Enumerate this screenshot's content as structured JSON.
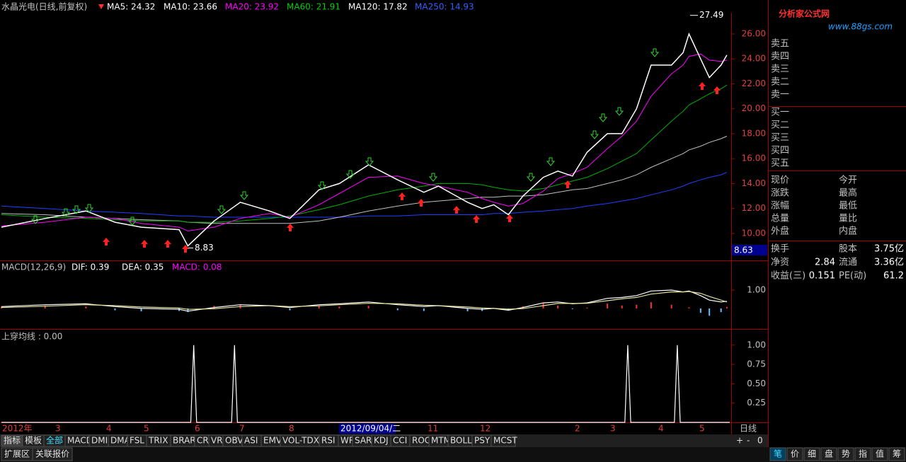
{
  "header": {
    "title": "水晶光电(日线,前复权)",
    "ma": [
      {
        "text": "MA5: 24.32",
        "color": "#ffffff"
      },
      {
        "text": "MA10: 23.66",
        "color": "#ffffff"
      },
      {
        "text": "MA20: 23.92",
        "color": "#ff00ff"
      },
      {
        "text": "MA60: 21.91",
        "color": "#00d000"
      },
      {
        "text": "MA120: 17.82",
        "color": "#ffffff"
      },
      {
        "text": "MA250: 14.93",
        "color": "#3060ff"
      }
    ]
  },
  "chart_data": [
    {
      "type": "line",
      "x": [
        0,
        15,
        29,
        39,
        48,
        61,
        64,
        73,
        82,
        92,
        99,
        109,
        116,
        126,
        136,
        145,
        150,
        160,
        165,
        169,
        174,
        179,
        186,
        191,
        196,
        201,
        208,
        213,
        218,
        223,
        230,
        234,
        236,
        240,
        243,
        247,
        249
      ],
      "xlim": [
        0,
        250
      ],
      "ylim": [
        7.84,
        27.7
      ],
      "yticks": [
        {
          "value": 10,
          "label": "10.00"
        },
        {
          "value": 12,
          "label": "12.00"
        },
        {
          "value": 14,
          "label": "14.00"
        },
        {
          "value": 16,
          "label": "16.00"
        },
        {
          "value": 18,
          "label": "18.00"
        },
        {
          "value": 20,
          "label": "20.00"
        },
        {
          "value": 22,
          "label": "22.00"
        },
        {
          "value": 24,
          "label": "24.00"
        },
        {
          "value": 26,
          "label": "26.00"
        }
      ],
      "series": [
        {
          "color": "#ffffff",
          "values": [
            10.5,
            11.2,
            11.8,
            10.9,
            10.5,
            10.3,
            9.0,
            11.0,
            12.5,
            11.8,
            11.2,
            13.5,
            14.0,
            15.5,
            14.3,
            13.3,
            13.8,
            12.5,
            12.0,
            12.3,
            11.5,
            13.0,
            14.5,
            15.0,
            14.6,
            16.5,
            18.0,
            18.0,
            20.0,
            23.5,
            23.5,
            24.5,
            26.0,
            24.0,
            22.5,
            23.5,
            24.3
          ]
        },
        {
          "name": "MA20",
          "color": "#ff00ff",
          "values": [
            10.6,
            10.9,
            11.3,
            11.2,
            10.8,
            10.5,
            10.2,
            10.5,
            11.2,
            11.6,
            11.3,
            12.3,
            13.2,
            14.5,
            14.6,
            14.0,
            13.8,
            13.3,
            12.8,
            12.5,
            12.2,
            12.4,
            13.4,
            14.4,
            14.8,
            15.3,
            16.8,
            17.8,
            19.0,
            21.0,
            22.8,
            23.5,
            24.2,
            24.4,
            23.9,
            23.8,
            23.9
          ]
        },
        {
          "name": "MA60",
          "color": "#00b000",
          "values": [
            11.5,
            11.3,
            11.2,
            11.1,
            11.0,
            11.0,
            10.9,
            10.9,
            11.0,
            11.2,
            11.4,
            11.9,
            12.3,
            13.0,
            13.5,
            13.8,
            14.0,
            14.0,
            13.9,
            13.7,
            13.5,
            13.4,
            13.6,
            13.9,
            14.2,
            14.5,
            15.2,
            15.8,
            16.4,
            17.5,
            19.0,
            19.8,
            20.3,
            20.8,
            21.2,
            21.6,
            21.9
          ]
        },
        {
          "name": "MA120",
          "color": "#c0c0c0",
          "values": [
            11.6,
            11.5,
            11.3,
            11.2,
            11.1,
            11.0,
            10.9,
            10.8,
            10.8,
            10.8,
            10.8,
            11.0,
            11.3,
            11.8,
            12.2,
            12.5,
            12.6,
            12.8,
            12.9,
            12.9,
            13.0,
            13.0,
            13.1,
            13.3,
            13.5,
            13.6,
            14.0,
            14.3,
            14.7,
            15.3,
            16.0,
            16.4,
            16.7,
            17.0,
            17.3,
            17.6,
            17.8
          ]
        },
        {
          "name": "MA250",
          "color": "#2040ff",
          "values": [
            12.2,
            12.0,
            11.8,
            11.7,
            11.6,
            11.4,
            11.4,
            11.3,
            11.3,
            11.3,
            11.3,
            11.3,
            11.3,
            11.4,
            11.4,
            11.5,
            11.5,
            11.5,
            11.5,
            11.6,
            11.6,
            11.7,
            11.8,
            11.9,
            12.0,
            12.2,
            12.4,
            12.6,
            12.8,
            13.1,
            13.5,
            13.8,
            14.0,
            14.3,
            14.5,
            14.7,
            14.9
          ]
        }
      ],
      "high": 27.49,
      "low": 8.83,
      "cursor": 8.63
    },
    {
      "type": "macd",
      "legend": [
        {
          "text": "MACD(12,26,9)",
          "color": "#c0c0c0"
        },
        {
          "text": "DIF: 0.39",
          "color": "#ffffff"
        },
        {
          "text": "DEA: 0.35",
          "color": "#ffffff"
        },
        {
          "text": "MACD: 0.08",
          "color": "#ff00ff"
        }
      ],
      "x": [
        0,
        15,
        29,
        39,
        48,
        61,
        64,
        73,
        82,
        92,
        99,
        109,
        116,
        126,
        136,
        145,
        150,
        160,
        165,
        169,
        174,
        179,
        186,
        191,
        196,
        201,
        208,
        213,
        218,
        223,
        230,
        234,
        236,
        240,
        243,
        247,
        249
      ],
      "xlim": [
        0,
        250
      ],
      "ylim": [
        -1.12,
        2.54
      ],
      "yticks": [
        {
          "value": 1,
          "label": "1.00"
        }
      ],
      "series": [
        {
          "color": "#ffffff",
          "values": [
            0.1,
            0.2,
            0.25,
            0.1,
            0.0,
            -0.05,
            -0.15,
            0.05,
            0.2,
            0.15,
            0.05,
            0.2,
            0.25,
            0.35,
            0.2,
            0.1,
            0.15,
            0.0,
            -0.05,
            0.0,
            -0.1,
            0.05,
            0.3,
            0.35,
            0.25,
            0.3,
            0.55,
            0.6,
            0.7,
            0.95,
            1.0,
            0.9,
            0.95,
            0.7,
            0.45,
            0.35,
            0.39
          ]
        },
        {
          "color": "#e0e0a0",
          "values": [
            0.05,
            0.12,
            0.2,
            0.15,
            0.08,
            0.02,
            -0.05,
            -0.02,
            0.1,
            0.15,
            0.1,
            0.14,
            0.2,
            0.28,
            0.25,
            0.17,
            0.15,
            0.08,
            0.02,
            0.0,
            -0.04,
            -0.01,
            0.15,
            0.27,
            0.27,
            0.28,
            0.42,
            0.52,
            0.6,
            0.78,
            0.9,
            0.9,
            0.92,
            0.82,
            0.65,
            0.45,
            0.35
          ]
        }
      ],
      "bars": [
        0.1,
        0.16,
        0.1,
        -0.1,
        -0.16,
        -0.14,
        -0.2,
        0.14,
        0.2,
        0,
        -0.1,
        0.12,
        0.1,
        0.14,
        -0.1,
        -0.14,
        0,
        -0.16,
        -0.14,
        0,
        -0.12,
        0.12,
        0.3,
        0.16,
        -0.04,
        0.04,
        0.26,
        0.16,
        0.2,
        0.34,
        0.2,
        0,
        0.06,
        -0.24,
        -0.4,
        -0.2,
        0.08
      ],
      "up_color": "#ff3030",
      "down_color": "#60c0ff"
    },
    {
      "type": "signal",
      "title": "上穿均线 : 0.00",
      "x": [
        0,
        65,
        66,
        67,
        79,
        80,
        81,
        214,
        215,
        216,
        231,
        232,
        233,
        250
      ],
      "values": [
        0,
        0,
        1,
        0,
        0,
        1,
        0,
        0,
        1,
        0,
        0,
        1,
        0,
        0
      ],
      "xlim": [
        0,
        250
      ],
      "ylim": [
        0,
        1.19
      ],
      "yticks": [
        {
          "value": 0.25,
          "label": "0.25"
        },
        {
          "value": 0.5,
          "label": "0.50"
        },
        {
          "value": 0.75,
          "label": "0.75"
        },
        {
          "value": 1,
          "label": "1.00"
        }
      ],
      "color": "#ffffff"
    }
  ],
  "time_axis": {
    "labels": [
      "2012年",
      "3",
      "4",
      "5",
      "6",
      "7",
      "8",
      "11",
      "12",
      "2",
      "3",
      "4",
      "5"
    ],
    "selected": "2012/09/04/二",
    "period": "日线"
  },
  "tabs": [
    "指标",
    "模板",
    "全部",
    "MACD",
    "DMI",
    "DMA",
    "FSL",
    "TRIX",
    "BRAR",
    "CR",
    "VR",
    "OBV",
    "ASI",
    "EMV",
    "VOL-TDX",
    "RSI",
    "WR",
    "SAR",
    "KDJ",
    "CCI",
    "ROC",
    "MTM",
    "BOLL",
    "PSY",
    "MCST"
  ],
  "zoom": [
    "+",
    "-",
    "0"
  ],
  "bottom_tabs": [
    "扩展区",
    "关联报价"
  ],
  "side_tabs": [
    "笔",
    "价",
    "细",
    "盘",
    "势",
    "指",
    "值",
    "筹"
  ],
  "logo": {
    "name": "分析家公式网",
    "url": "www.88gs.com"
  },
  "orderbook": {
    "sell": [
      "卖五",
      "卖四",
      "卖三",
      "卖二",
      "卖一"
    ],
    "buy": [
      "买一",
      "买二",
      "买三",
      "买四",
      "买五"
    ]
  },
  "quote": [
    [
      "现价",
      "今开"
    ],
    [
      "涨跌",
      "最高"
    ],
    [
      "涨幅",
      "最低"
    ],
    [
      "总量",
      "量比"
    ],
    [
      "外盘",
      "内盘"
    ]
  ],
  "fundamentals": [
    {
      "label": "换手",
      "label2": "股本",
      "value2": "3.75亿"
    },
    {
      "label": "净资",
      "value": "2.84",
      "label2": "流通",
      "value2": "3.36亿"
    },
    {
      "label": "收益(三)",
      "value": "0.151",
      "label2": "PE(动)",
      "value2": "61.2"
    }
  ]
}
